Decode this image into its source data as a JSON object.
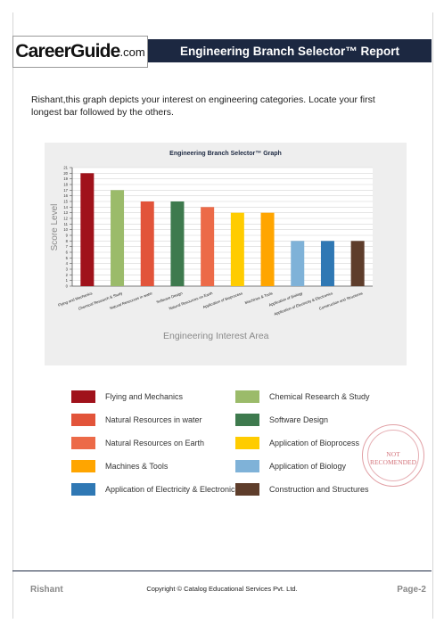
{
  "logo": {
    "main": "CareerGuide",
    "suffix": ".com"
  },
  "header": {
    "title": "Engineering Branch Selector™ Report"
  },
  "intro": {
    "text": "Rishant,this graph depicts your interest on engineering categories. Locate your first longest bar followed by the others."
  },
  "chart_data": {
    "type": "bar",
    "title": "Engineering Branch Selector™ Graph",
    "xlabel": "Engineering Interest Area",
    "ylabel": "Score Level",
    "ylim": [
      0,
      21
    ],
    "yticks": [
      0,
      1,
      2,
      3,
      4,
      5,
      6,
      7,
      8,
      9,
      10,
      11,
      12,
      13,
      14,
      15,
      16,
      17,
      18,
      19,
      20,
      21
    ],
    "grid": true,
    "categories": [
      "Flying and Mechanics",
      "Chemical Research & Study",
      "Natural Resources in water",
      "Software Design",
      "Natural Resources on Earth",
      "Application of Bioprocess",
      "Machines & Tools",
      "Application of Biology",
      "Application of Electricity & Electronics",
      "Construction and Structures"
    ],
    "values": [
      20,
      17,
      15,
      15,
      14,
      13,
      13,
      8,
      8,
      8
    ],
    "colors": [
      "#a0121b",
      "#9bbb6a",
      "#e2543a",
      "#3e7a4e",
      "#ec6a48",
      "#ffcc00",
      "#ffa500",
      "#7fb2d8",
      "#2f78b4",
      "#5e3d2b"
    ]
  },
  "stamp": {
    "line1": "NOT",
    "line2": "RECOMENDED"
  },
  "legend": [
    {
      "label": "Flying and Mechanics",
      "color": "#a0121b"
    },
    {
      "label": "Chemical Research & Study",
      "color": "#9bbb6a"
    },
    {
      "label": "Natural Resources in water",
      "color": "#e2543a"
    },
    {
      "label": "Software Design",
      "color": "#3e7a4e"
    },
    {
      "label": "Natural Resources on Earth",
      "color": "#ec6a48"
    },
    {
      "label": "Application of Bioprocess",
      "color": "#ffcc00"
    },
    {
      "label": "Machines & Tools",
      "color": "#ffa500"
    },
    {
      "label": "Application of Biology",
      "color": "#7fb2d8"
    },
    {
      "label": "Application of Electricity & Electronics",
      "color": "#2f78b4"
    },
    {
      "label": "Construction and Structures",
      "color": "#5e3d2b"
    }
  ],
  "footer": {
    "name": "Rishant",
    "copyright": "Copyright © Catalog Educational Services Pvt. Ltd.",
    "page": "Page-2"
  }
}
